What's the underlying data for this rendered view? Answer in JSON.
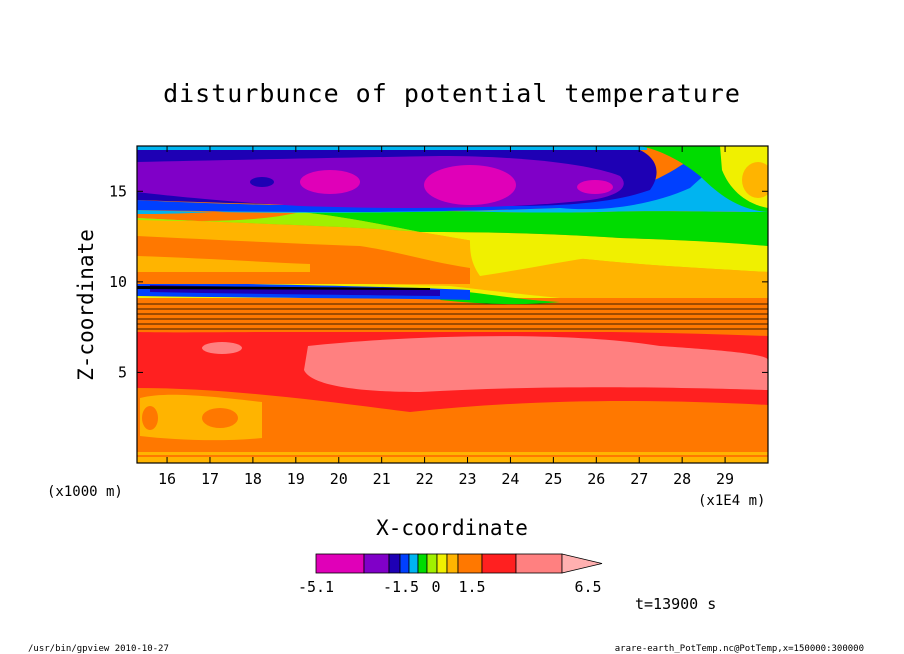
{
  "chart_data": {
    "type": "heatmap",
    "title": "disturbunce of potential temperature",
    "xlabel": "X-coordinate",
    "ylabel": "Z-coordinate",
    "x_unit_left": "(x1000 m)",
    "x_unit_right": "(x1E4 m)",
    "x_ticks": [
      "16",
      "17",
      "18",
      "19",
      "20",
      "21",
      "22",
      "23",
      "24",
      "25",
      "26",
      "27",
      "28",
      "29"
    ],
    "y_ticks": [
      "5",
      "10",
      "15"
    ],
    "xlim": [
      15.3,
      30
    ],
    "ylim": [
      0,
      17.5
    ],
    "colorbar": {
      "colors": [
        "#e000b8",
        "#8000c8",
        "#1e00b4",
        "#0040ff",
        "#00b4f0",
        "#00dc00",
        "#a0f000",
        "#f0f000",
        "#ffb400",
        "#ff7800",
        "#ff2020",
        "#ff8080",
        "#ffb0b0"
      ],
      "tick_labels": [
        "-5.1",
        "-1.5",
        "0",
        "1.5",
        "6.5"
      ]
    },
    "time_label": "t=13900 s",
    "layers": [
      {
        "z": [
          0,
          0.6
        ],
        "value": "1.5 to 3",
        "color": "#ff7800"
      },
      {
        "z": [
          0.6,
          3.5
        ],
        "value": "1.5 to 3",
        "color": "#ff7800"
      },
      {
        "z": [
          3.5,
          5
        ],
        "value": "3 to 4.5",
        "color": "#ff2020"
      },
      {
        "z": [
          5,
          6.5
        ],
        "value": "4.5 to 6.5",
        "color": "#ff8080"
      },
      {
        "z": [
          6.5,
          7.2
        ],
        "value": "3 to 4.5",
        "color": "#ff2020"
      },
      {
        "z": [
          7.2,
          8.4
        ],
        "value": "1.5 to 3",
        "color": "#ff7800"
      },
      {
        "z": [
          9.7,
          10
        ],
        "value": "-1.5 to -1",
        "color": "#1e00b4"
      },
      {
        "z": [
          10.2,
          12
        ],
        "value": "0.5 to 1.5",
        "color": "#ffb400"
      },
      {
        "z": [
          12,
          13
        ],
        "value": "0 to 0.5",
        "color": "#f0f000"
      },
      {
        "z": [
          14.5,
          16.5
        ],
        "value": "-3 to -1.5",
        "color": "#8000c8"
      },
      {
        "z": [
          16.5,
          17.5
        ],
        "value": "-1 to -0.5",
        "color": "#00b4f0"
      }
    ]
  },
  "footer": {
    "left": "/usr/bin/gpview   2010-10-27",
    "right": "arare-earth_PotTemp.nc@PotTemp,x=150000:300000"
  }
}
